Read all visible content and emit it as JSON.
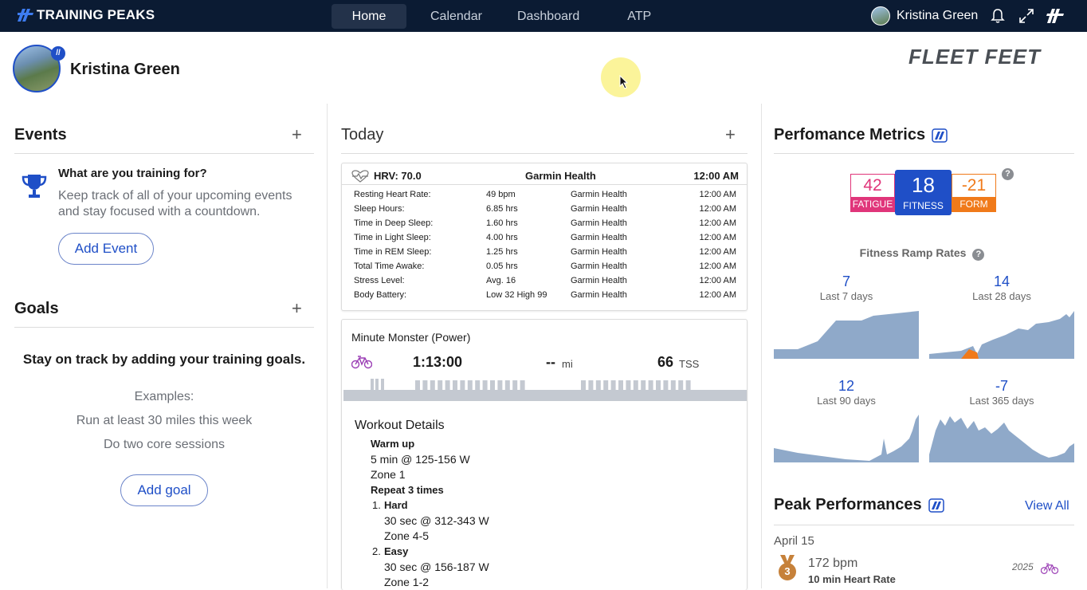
{
  "topbar": {
    "brand": "TRAINING PEAKS",
    "nav": [
      "Home",
      "Calendar",
      "Dashboard",
      "ATP"
    ],
    "user_name": "Kristina Green"
  },
  "profile": {
    "name": "Kristina Green",
    "sponsor": "FLEET FEET"
  },
  "events": {
    "title": "Events",
    "question": "What are you training for?",
    "text": "Keep track of all of your upcoming events and stay focused with a countdown.",
    "button": "Add Event"
  },
  "goals": {
    "title": "Goals",
    "headline": "Stay on track by adding your training goals.",
    "examples_label": "Examples:",
    "example1": "Run at least 30 miles this week",
    "example2": "Do two core sessions",
    "button": "Add goal"
  },
  "today": {
    "title": "Today",
    "hrv": {
      "label": "HRV: 70.0",
      "source": "Garmin Health",
      "time": "12:00 AM",
      "rows": [
        {
          "k": "Resting Heart Rate:",
          "v": "49 bpm",
          "s": "Garmin Health",
          "t": "12:00 AM"
        },
        {
          "k": "Sleep Hours:",
          "v": "6.85 hrs",
          "s": "Garmin Health",
          "t": "12:00 AM"
        },
        {
          "k": "Time in Deep Sleep:",
          "v": "1.60 hrs",
          "s": "Garmin Health",
          "t": "12:00 AM"
        },
        {
          "k": "Time in Light Sleep:",
          "v": "4.00 hrs",
          "s": "Garmin Health",
          "t": "12:00 AM"
        },
        {
          "k": "Time in REM Sleep:",
          "v": "1.25 hrs",
          "s": "Garmin Health",
          "t": "12:00 AM"
        },
        {
          "k": "Total Time Awake:",
          "v": "0.05 hrs",
          "s": "Garmin Health",
          "t": "12:00 AM"
        },
        {
          "k": "Stress Level:",
          "v": "Avg. 16",
          "s": "Garmin Health",
          "t": "12:00 AM"
        },
        {
          "k": "Body Battery:",
          "v": "Low 32 High 99",
          "s": "Garmin Health",
          "t": "12:00 AM"
        }
      ]
    },
    "workout": {
      "title": "Minute Monster (Power)",
      "duration": "1:13:00",
      "distance": "--",
      "distance_unit": "mi",
      "tss": "66",
      "tss_unit": "TSS",
      "details_title": "Workout Details",
      "lines": [
        "Warm up",
        "5 min @ 125-156 W",
        "Zone 1",
        "Repeat 3 times",
        "1.",
        "Hard",
        "30 sec @ 312-343 W",
        "Zone 4-5",
        "2.",
        "Easy",
        "30 sec @ 156-187 W",
        "Zone 1-2"
      ]
    }
  },
  "metrics": {
    "title": "Perfomance Metrics",
    "fatigue": {
      "value": "42",
      "label": "FATIGUE"
    },
    "fitness": {
      "value": "18",
      "label": "FITNESS"
    },
    "form": {
      "value": "-21",
      "label": "FORM"
    },
    "ramp_title": "Fitness Ramp Rates",
    "ramps": [
      {
        "value": "7",
        "label": "Last 7 days"
      },
      {
        "value": "14",
        "label": "Last 28 days"
      },
      {
        "value": "12",
        "label": "Last 90 days"
      },
      {
        "value": "-7",
        "label": "Last 365 days"
      }
    ]
  },
  "peak": {
    "title": "Peak Performances",
    "view_all": "View All",
    "date": "April 15",
    "rank": "3",
    "value": "172 bpm",
    "desc": "10 min Heart Rate",
    "year": "2025"
  },
  "colors": {
    "nav_bg": "#0b1b33",
    "accent": "#1f4fc7",
    "fatigue": "#e0357a",
    "form": "#f07a1a",
    "ramp_fill": "#8fa9c9",
    "ramp_orange": "#f07a1a"
  }
}
